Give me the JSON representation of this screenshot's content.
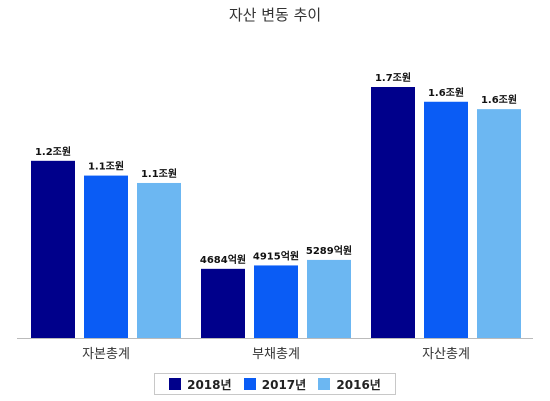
{
  "chart_data": {
    "type": "bar",
    "title": "자산 변동 추이",
    "categories": [
      "자본총계",
      "부채총계",
      "자산총계"
    ],
    "unit": "억원",
    "series": [
      {
        "name": "2018년",
        "color": "#00008b",
        "values": [
          12000,
          4684,
          17000
        ],
        "labels": [
          "1.2조원",
          "4684억원",
          "1.7조원"
        ]
      },
      {
        "name": "2017년",
        "color": "#0a5cf5",
        "values": [
          11000,
          4915,
          16000
        ],
        "labels": [
          "1.1조원",
          "4915억원",
          "1.6조원"
        ]
      },
      {
        "name": "2016년",
        "color": "#6cb7f2",
        "values": [
          10500,
          5289,
          15500
        ],
        "labels": [
          "1.1조원",
          "5289억원",
          "1.6조원"
        ]
      }
    ],
    "ylim": [
      0,
      17000
    ],
    "grid": false,
    "legend_position": "bottom"
  }
}
